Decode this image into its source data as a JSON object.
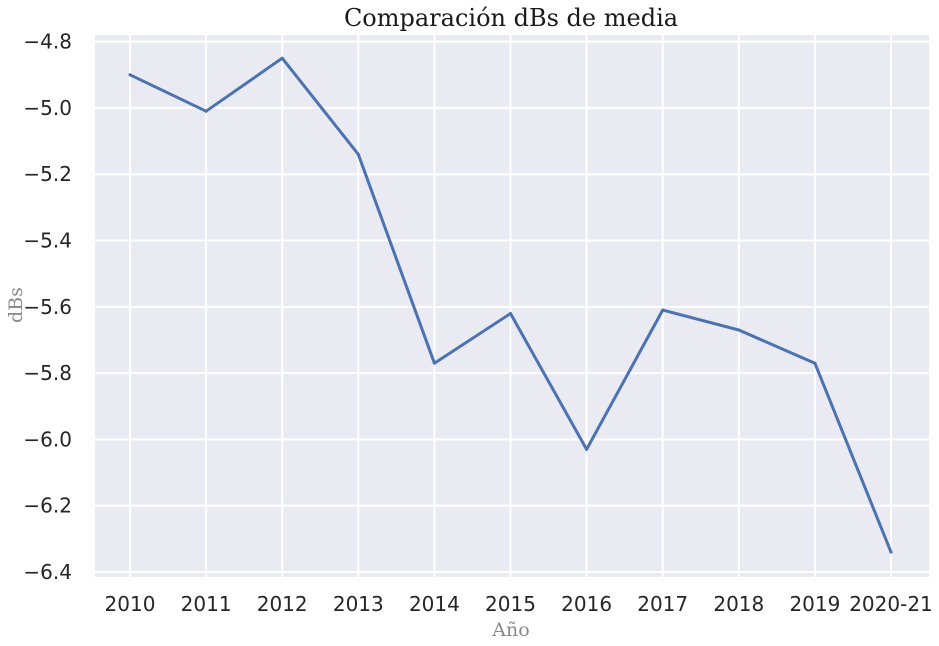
{
  "chart_data": {
    "type": "line",
    "title": "Comparación dBs de media",
    "xlabel": "Año",
    "ylabel": "dBs",
    "categories": [
      "2010",
      "2011",
      "2012",
      "2013",
      "2014",
      "2015",
      "2016",
      "2017",
      "2018",
      "2019",
      "2020-21"
    ],
    "series": [
      {
        "values": [
          -4.9,
          -5.01,
          -4.85,
          -5.14,
          -5.77,
          -5.62,
          -6.03,
          -5.61,
          -5.67,
          -5.77,
          -6.34
        ],
        "color": "#4c72b0"
      }
    ],
    "yticks": [
      "−4.8",
      "−5.0",
      "−5.2",
      "−5.4",
      "−5.6",
      "−5.8",
      "−6.0",
      "−6.2",
      "−6.4"
    ],
    "ylim": [
      -6.415,
      -4.78
    ],
    "grid": true,
    "background_color": "#eaeaf2",
    "grid_color": "#ffffff"
  }
}
